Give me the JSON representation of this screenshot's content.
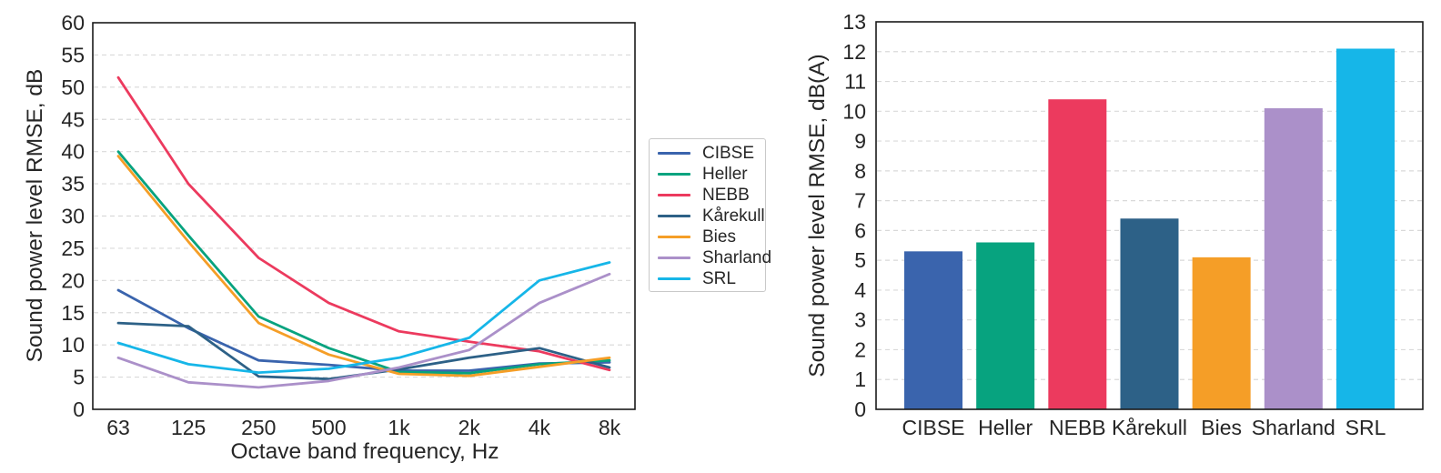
{
  "figure": {
    "background": "#ffffff",
    "text_color": "#262626",
    "gridline_color": "#d9d9d9",
    "axis_box_color": "#1a1a1a"
  },
  "chart_data": [
    {
      "id": "octave-line-chart",
      "type": "line",
      "title": "",
      "xlabel": "Octave band frequency, Hz",
      "ylabel": "Sound power level RMSE, dB",
      "categories": [
        "63",
        "125",
        "250",
        "500",
        "1k",
        "2k",
        "4k",
        "8k"
      ],
      "ylim": [
        0,
        60
      ],
      "ytick_step": 5,
      "grid": "horizontal-dashed",
      "legend_position": "right-outside",
      "series": [
        {
          "name": "CIBSE",
          "color": "#3a64ad",
          "values": [
            18.5,
            12.6,
            7.6,
            6.9,
            6.0,
            6.0,
            7.1,
            7.3
          ]
        },
        {
          "name": "Heller",
          "color": "#07a37f",
          "values": [
            40.0,
            27.0,
            14.4,
            9.5,
            5.8,
            5.6,
            7.0,
            7.6
          ]
        },
        {
          "name": "NEBB",
          "color": "#ec3a5e",
          "values": [
            51.5,
            35.0,
            23.5,
            16.5,
            12.1,
            10.5,
            9.0,
            6.1
          ]
        },
        {
          "name": "Kårekull",
          "color": "#2d6187",
          "values": [
            13.4,
            12.9,
            5.1,
            4.7,
            6.2,
            8.0,
            9.5,
            6.5
          ]
        },
        {
          "name": "Bies",
          "color": "#f59e27",
          "values": [
            39.3,
            26.0,
            13.4,
            8.5,
            5.5,
            5.2,
            6.6,
            8.0
          ]
        },
        {
          "name": "Sharland",
          "color": "#ab90c9",
          "values": [
            8.0,
            4.2,
            3.4,
            4.4,
            6.5,
            9.2,
            16.5,
            21.0
          ]
        },
        {
          "name": "SRL",
          "color": "#16b6e8",
          "values": [
            10.3,
            7.0,
            5.7,
            6.3,
            8.0,
            11.1,
            20.0,
            22.8
          ]
        }
      ]
    },
    {
      "id": "aweighted-bar-chart",
      "type": "bar",
      "title": "",
      "xlabel": "",
      "ylabel": "Sound power level RMSE, dB(A)",
      "categories": [
        "CIBSE",
        "Heller",
        "NEBB",
        "Kårekull",
        "Bies",
        "Sharland",
        "SRL"
      ],
      "ylim": [
        0,
        13
      ],
      "ytick_step": 1,
      "grid": "horizontal-dashed",
      "values": [
        5.3,
        5.6,
        10.4,
        6.4,
        5.1,
        10.1,
        12.1
      ],
      "bar_colors": [
        "#3a64ad",
        "#07a37f",
        "#ec3a5e",
        "#2d6187",
        "#f59e27",
        "#ab90c9",
        "#16b6e8"
      ]
    }
  ]
}
